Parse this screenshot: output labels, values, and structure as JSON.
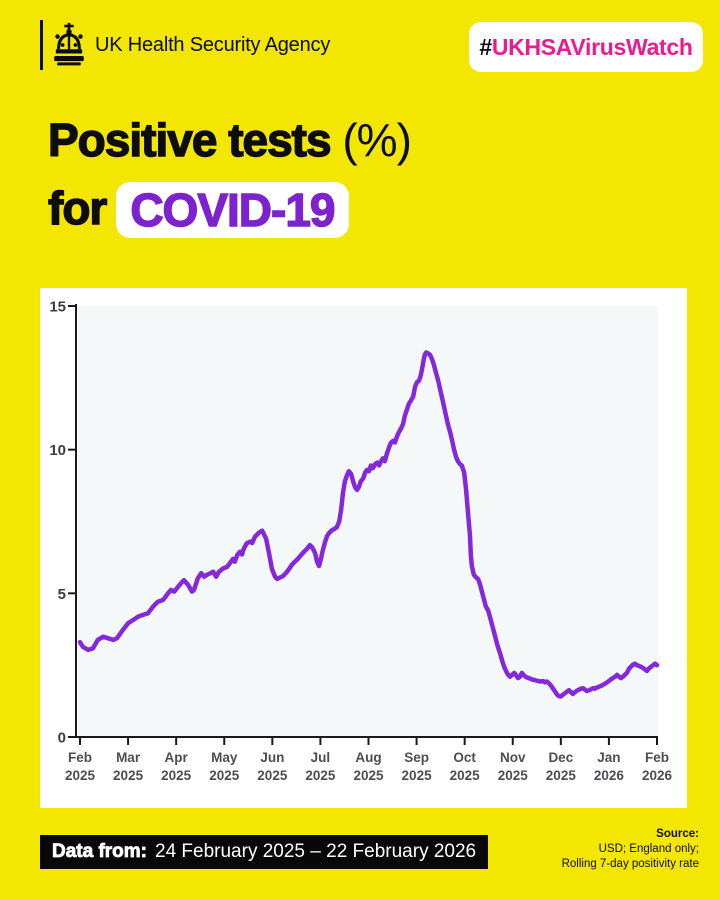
{
  "page": {
    "background_color": "#F3E600"
  },
  "header": {
    "agency_name": "UK Health Security Agency",
    "hashtag_prefix": "#",
    "hashtag_text": "UKHSAVirusWatch",
    "hashtag_color": "#EC1A8E"
  },
  "title": {
    "line1_heavy": "Positive tests",
    "line1_light": " (%)",
    "line2_prefix": "for",
    "line2_highlight": "COVID-19",
    "highlight_text_color": "#7D23CE"
  },
  "chart_data": {
    "type": "line",
    "title": "Positive tests (%) for COVID-19",
    "xlabel": "",
    "ylabel": "",
    "ylim": [
      0,
      15
    ],
    "y_ticks": [
      0,
      5,
      10,
      15
    ],
    "x_ticks": [
      {
        "month": "Feb",
        "year": "2025"
      },
      {
        "month": "Mar",
        "year": "2025"
      },
      {
        "month": "Apr",
        "year": "2025"
      },
      {
        "month": "May",
        "year": "2025"
      },
      {
        "month": "Jun",
        "year": "2025"
      },
      {
        "month": "Jul",
        "year": "2025"
      },
      {
        "month": "Aug",
        "year": "2025"
      },
      {
        "month": "Sep",
        "year": "2025"
      },
      {
        "month": "Oct",
        "year": "2025"
      },
      {
        "month": "Nov",
        "year": "2025"
      },
      {
        "month": "Dec",
        "year": "2025"
      },
      {
        "month": "Jan",
        "year": "2026"
      },
      {
        "month": "Feb",
        "year": "2026"
      }
    ],
    "grid": false,
    "legend_position": "none",
    "line_color": "#8528DC",
    "plot_bg": "#F4F8F9",
    "axis_color": "#1a1a1a",
    "tick_label_color": "#4d4d52",
    "series": [
      {
        "name": "Rolling 7-day positivity rate (%)",
        "x_unit": "months since Feb 2025",
        "points": [
          [
            0,
            3.3
          ],
          [
            0.06,
            3.14
          ],
          [
            0.17,
            3.03
          ],
          [
            0.27,
            3.09
          ],
          [
            0.37,
            3.38
          ],
          [
            0.48,
            3.49
          ],
          [
            0.58,
            3.44
          ],
          [
            0.69,
            3.38
          ],
          [
            0.77,
            3.44
          ],
          [
            0.89,
            3.72
          ],
          [
            1,
            3.96
          ],
          [
            1.1,
            4.07
          ],
          [
            1.21,
            4.19
          ],
          [
            1.31,
            4.25
          ],
          [
            1.41,
            4.3
          ],
          [
            1.52,
            4.54
          ],
          [
            1.62,
            4.71
          ],
          [
            1.73,
            4.77
          ],
          [
            1.83,
            5
          ],
          [
            1.89,
            5.12
          ],
          [
            1.96,
            5.06
          ],
          [
            2.04,
            5.23
          ],
          [
            2.1,
            5.35
          ],
          [
            2.16,
            5.46
          ],
          [
            2.25,
            5.29
          ],
          [
            2.33,
            5.06
          ],
          [
            2.37,
            5.12
          ],
          [
            2.45,
            5.52
          ],
          [
            2.52,
            5.7
          ],
          [
            2.58,
            5.58
          ],
          [
            2.64,
            5.64
          ],
          [
            2.7,
            5.69
          ],
          [
            2.77,
            5.75
          ],
          [
            2.83,
            5.58
          ],
          [
            2.89,
            5.75
          ],
          [
            2.97,
            5.86
          ],
          [
            3.06,
            5.92
          ],
          [
            3.14,
            6.1
          ],
          [
            3.18,
            6.2
          ],
          [
            3.22,
            6.1
          ],
          [
            3.27,
            6.33
          ],
          [
            3.33,
            6.45
          ],
          [
            3.37,
            6.35
          ],
          [
            3.41,
            6.57
          ],
          [
            3.47,
            6.74
          ],
          [
            3.54,
            6.8
          ],
          [
            3.58,
            6.75
          ],
          [
            3.64,
            6.97
          ],
          [
            3.72,
            7.11
          ],
          [
            3.79,
            7.18
          ],
          [
            3.87,
            6.9
          ],
          [
            3.93,
            6.4
          ],
          [
            3.99,
            5.85
          ],
          [
            4.06,
            5.57
          ],
          [
            4.1,
            5.5
          ],
          [
            4.16,
            5.55
          ],
          [
            4.22,
            5.6
          ],
          [
            4.28,
            5.7
          ],
          [
            4.35,
            5.85
          ],
          [
            4.41,
            6
          ],
          [
            4.47,
            6.1
          ],
          [
            4.53,
            6.2
          ],
          [
            4.6,
            6.34
          ],
          [
            4.66,
            6.45
          ],
          [
            4.72,
            6.55
          ],
          [
            4.78,
            6.68
          ],
          [
            4.83,
            6.6
          ],
          [
            4.89,
            6.4
          ],
          [
            4.93,
            6.1
          ],
          [
            4.97,
            5.95
          ],
          [
            5.01,
            6.2
          ],
          [
            5.05,
            6.5
          ],
          [
            5.1,
            6.8
          ],
          [
            5.14,
            7
          ],
          [
            5.18,
            7.1
          ],
          [
            5.24,
            7.2
          ],
          [
            5.3,
            7.25
          ],
          [
            5.34,
            7.3
          ],
          [
            5.39,
            7.5
          ],
          [
            5.43,
            7.9
          ],
          [
            5.47,
            8.5
          ],
          [
            5.51,
            8.9
          ],
          [
            5.55,
            9.1
          ],
          [
            5.59,
            9.25
          ],
          [
            5.64,
            9.15
          ],
          [
            5.68,
            8.9
          ],
          [
            5.72,
            8.7
          ],
          [
            5.76,
            8.6
          ],
          [
            5.8,
            8.7
          ],
          [
            5.84,
            8.9
          ],
          [
            5.89,
            9
          ],
          [
            5.93,
            9.2
          ],
          [
            5.97,
            9.3
          ],
          [
            6.01,
            9.25
          ],
          [
            6.05,
            9.45
          ],
          [
            6.09,
            9.35
          ],
          [
            6.14,
            9.5
          ],
          [
            6.18,
            9.55
          ],
          [
            6.22,
            9.45
          ],
          [
            6.26,
            9.6
          ],
          [
            6.3,
            9.7
          ],
          [
            6.34,
            9.6
          ],
          [
            6.38,
            9.85
          ],
          [
            6.43,
            10.1
          ],
          [
            6.47,
            10.25
          ],
          [
            6.51,
            10.3
          ],
          [
            6.55,
            10.25
          ],
          [
            6.59,
            10.45
          ],
          [
            6.63,
            10.6
          ],
          [
            6.68,
            10.75
          ],
          [
            6.72,
            10.9
          ],
          [
            6.76,
            11.2
          ],
          [
            6.8,
            11.4
          ],
          [
            6.84,
            11.6
          ],
          [
            6.88,
            11.7
          ],
          [
            6.93,
            11.85
          ],
          [
            6.97,
            12.2
          ],
          [
            7.01,
            12.35
          ],
          [
            7.05,
            12.4
          ],
          [
            7.09,
            12.6
          ],
          [
            7.13,
            12.95
          ],
          [
            7.15,
            13.15
          ],
          [
            7.17,
            13.3
          ],
          [
            7.2,
            13.38
          ],
          [
            7.24,
            13.35
          ],
          [
            7.28,
            13.3
          ],
          [
            7.32,
            13.15
          ],
          [
            7.36,
            12.95
          ],
          [
            7.4,
            12.7
          ],
          [
            7.45,
            12.4
          ],
          [
            7.49,
            12.1
          ],
          [
            7.53,
            11.8
          ],
          [
            7.57,
            11.5
          ],
          [
            7.61,
            11.2
          ],
          [
            7.65,
            10.9
          ],
          [
            7.7,
            10.6
          ],
          [
            7.74,
            10.3
          ],
          [
            7.78,
            10
          ],
          [
            7.82,
            9.75
          ],
          [
            7.86,
            9.6
          ],
          [
            7.9,
            9.5
          ],
          [
            7.94,
            9.45
          ],
          [
            7.99,
            9.2
          ],
          [
            8.03,
            8.6
          ],
          [
            8.07,
            7.8
          ],
          [
            8.11,
            7
          ],
          [
            8.13,
            6.3
          ],
          [
            8.15,
            5.95
          ],
          [
            8.19,
            5.65
          ],
          [
            8.24,
            5.55
          ],
          [
            8.28,
            5.5
          ],
          [
            8.32,
            5.3
          ],
          [
            8.36,
            5.05
          ],
          [
            8.4,
            4.8
          ],
          [
            8.44,
            4.55
          ],
          [
            8.49,
            4.4
          ],
          [
            8.53,
            4.15
          ],
          [
            8.57,
            3.9
          ],
          [
            8.61,
            3.65
          ],
          [
            8.65,
            3.4
          ],
          [
            8.69,
            3.15
          ],
          [
            8.74,
            2.9
          ],
          [
            8.78,
            2.65
          ],
          [
            8.82,
            2.45
          ],
          [
            8.86,
            2.3
          ],
          [
            8.9,
            2.18
          ],
          [
            8.94,
            2.1
          ],
          [
            8.98,
            2.15
          ],
          [
            9.03,
            2.23
          ],
          [
            9.07,
            2.15
          ],
          [
            9.11,
            2.05
          ],
          [
            9.15,
            2.1
          ],
          [
            9.19,
            2.23
          ],
          [
            9.23,
            2.15
          ],
          [
            9.28,
            2.08
          ],
          [
            9.34,
            2.05
          ],
          [
            9.4,
            2
          ],
          [
            9.46,
            1.98
          ],
          [
            9.52,
            1.95
          ],
          [
            9.59,
            1.93
          ],
          [
            9.63,
            1.95
          ],
          [
            9.67,
            1.9
          ],
          [
            9.71,
            1.93
          ],
          [
            9.75,
            1.88
          ],
          [
            9.8,
            1.78
          ],
          [
            9.84,
            1.68
          ],
          [
            9.88,
            1.58
          ],
          [
            9.92,
            1.48
          ],
          [
            9.96,
            1.42
          ],
          [
            10,
            1.41
          ],
          [
            10.04,
            1.47
          ],
          [
            10.09,
            1.53
          ],
          [
            10.13,
            1.58
          ],
          [
            10.17,
            1.63
          ],
          [
            10.21,
            1.56
          ],
          [
            10.25,
            1.5
          ],
          [
            10.29,
            1.56
          ],
          [
            10.34,
            1.62
          ],
          [
            10.38,
            1.65
          ],
          [
            10.42,
            1.68
          ],
          [
            10.46,
            1.7
          ],
          [
            10.5,
            1.65
          ],
          [
            10.54,
            1.6
          ],
          [
            10.59,
            1.63
          ],
          [
            10.63,
            1.66
          ],
          [
            10.67,
            1.7
          ],
          [
            10.71,
            1.68
          ],
          [
            10.75,
            1.72
          ],
          [
            10.79,
            1.75
          ],
          [
            10.84,
            1.78
          ],
          [
            10.88,
            1.82
          ],
          [
            10.92,
            1.86
          ],
          [
            10.96,
            1.9
          ],
          [
            11,
            1.95
          ],
          [
            11.04,
            2
          ],
          [
            11.08,
            2.05
          ],
          [
            11.13,
            2.1
          ],
          [
            11.17,
            2.16
          ],
          [
            11.21,
            2.1
          ],
          [
            11.25,
            2.05
          ],
          [
            11.29,
            2.1
          ],
          [
            11.33,
            2.16
          ],
          [
            11.38,
            2.25
          ],
          [
            11.42,
            2.38
          ],
          [
            11.46,
            2.45
          ],
          [
            11.5,
            2.52
          ],
          [
            11.54,
            2.55
          ],
          [
            11.58,
            2.5
          ],
          [
            11.62,
            2.48
          ],
          [
            11.67,
            2.44
          ],
          [
            11.71,
            2.4
          ],
          [
            11.75,
            2.35
          ],
          [
            11.79,
            2.3
          ],
          [
            11.83,
            2.38
          ],
          [
            11.88,
            2.45
          ],
          [
            11.92,
            2.5
          ],
          [
            11.96,
            2.55
          ],
          [
            12,
            2.5
          ]
        ]
      }
    ]
  },
  "footer": {
    "data_from_label": "Data from:",
    "data_from_range": "24 February 2025 – 22 February 2026",
    "source_label": "Source:",
    "source_line1": "USD; England only;",
    "source_line2": "Rolling 7-day positivity rate"
  }
}
